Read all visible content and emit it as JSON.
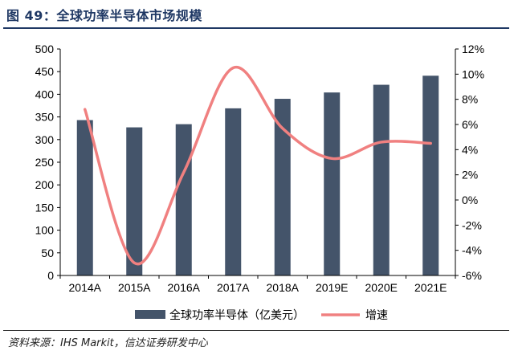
{
  "figure": {
    "title": "图 49：全球功率半导体市场规模",
    "source": "资料来源：IHS Markit，信达证券研发中心"
  },
  "colors": {
    "bar": "#44546a",
    "line": "#f08080",
    "title": "#1f3864",
    "axis": "#000000"
  },
  "chart_data": {
    "type": "bar",
    "categories": [
      "2014A",
      "2015A",
      "2016A",
      "2017A",
      "2018A",
      "2019E",
      "2020E",
      "2021E"
    ],
    "series": [
      {
        "name": "全球功率半导体（亿美元）",
        "type": "bar",
        "axis": "left",
        "values": [
          343,
          327,
          334,
          369,
          390,
          404,
          421,
          441
        ]
      },
      {
        "name": "增速",
        "type": "line",
        "axis": "right",
        "smooth": true,
        "values": [
          7.2,
          -5.0,
          2.2,
          10.5,
          5.7,
          3.3,
          4.6,
          4.5
        ]
      }
    ],
    "y_left": {
      "lim": [
        0,
        500
      ],
      "ticks": [
        "0",
        "50",
        "100",
        "150",
        "200",
        "250",
        "300",
        "350",
        "400",
        "450",
        "500"
      ]
    },
    "y_right": {
      "lim": [
        -6,
        12
      ],
      "ticks": [
        "-6%",
        "-4%",
        "-2%",
        "0%",
        "2%",
        "4%",
        "6%",
        "8%",
        "10%",
        "12%"
      ]
    },
    "grid": false,
    "legend_position": "bottom"
  }
}
